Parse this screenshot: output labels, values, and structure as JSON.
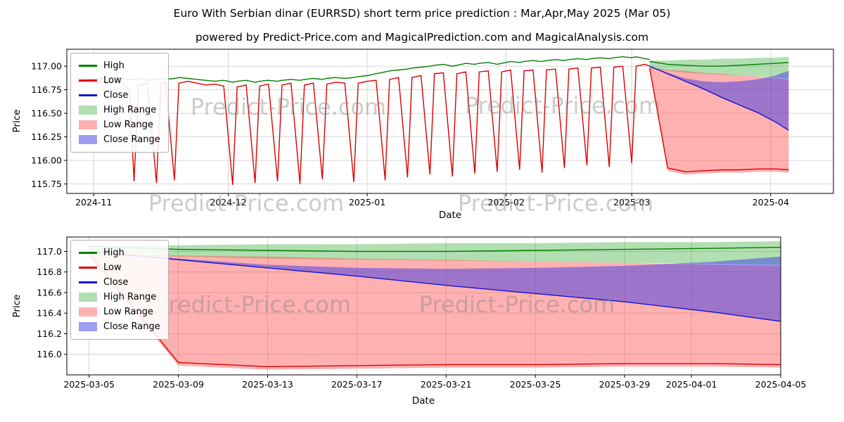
{
  "figure": {
    "title": "Euro With Serbian dinar (EURRSD) short term price prediction : Mar,Apr,May 2025 (Mar 05)",
    "subtitle": "powered by Predict-Price.com and MagicalPrediction.com and MagicalAnalysis.com",
    "watermark": "Predict-Price.com"
  },
  "colors": {
    "high_line": "#008000",
    "low_line": "#dd0000",
    "close_line": "#1414cc",
    "high_range": "rgba(0,150,0,0.30)",
    "low_range": "rgba(255,70,70,0.42)",
    "close_range": "rgba(60,60,230,0.50)",
    "grid": "#cccccc",
    "axis": "#000000",
    "watermark": "rgba(128,128,128,0.40)"
  },
  "legend": {
    "items": [
      {
        "label": "High",
        "swatch": "line",
        "color_key": "high_line"
      },
      {
        "label": "Low",
        "swatch": "line",
        "color_key": "low_line"
      },
      {
        "label": "Close",
        "swatch": "line",
        "color_key": "close_line"
      },
      {
        "label": "High Range",
        "swatch": "patch",
        "color_key": "high_range"
      },
      {
        "label": "Low Range",
        "swatch": "patch",
        "color_key": "low_range"
      },
      {
        "label": "Close Range",
        "swatch": "patch",
        "color_key": "close_range"
      }
    ]
  },
  "chart_data": [
    {
      "type": "line",
      "name": "history-with-forecast",
      "title": "",
      "xlabel": "Date",
      "ylabel": "Price",
      "xlim": [
        "2024-10-26",
        "2025-04-15"
      ],
      "ylim": [
        115.65,
        117.18
      ],
      "x_ticks": [
        {
          "date": "2024-11-01",
          "label": "2024-11"
        },
        {
          "date": "2024-12-01",
          "label": "2024-12"
        },
        {
          "date": "2025-01-01",
          "label": "2025-01"
        },
        {
          "date": "2025-02-01",
          "label": "2025-02"
        },
        {
          "date": "2025-03-01",
          "label": "2025-03"
        },
        {
          "date": "2025-04-01",
          "label": "2025-04"
        }
      ],
      "y_ticks": [
        {
          "value": 115.75,
          "label": "115.75"
        },
        {
          "value": 116.0,
          "label": "116.00"
        },
        {
          "value": 116.25,
          "label": "116.25"
        },
        {
          "value": 116.5,
          "label": "116.50"
        },
        {
          "value": 116.75,
          "label": "116.75"
        },
        {
          "value": 117.0,
          "label": "117.00"
        }
      ],
      "series": {
        "historical": {
          "base_date": "2024-10-28",
          "day_offsets": [
            0,
            2,
            4,
            6,
            8,
            10,
            12,
            13,
            14,
            16,
            18,
            19,
            20,
            22,
            23,
            25,
            27,
            29,
            31,
            33,
            35,
            36,
            38,
            40,
            41,
            43,
            45,
            46,
            48,
            50,
            51,
            53,
            55,
            56,
            58,
            60,
            62,
            63,
            65,
            67,
            69,
            70,
            72,
            74,
            75,
            77,
            79,
            80,
            82,
            84,
            85,
            87,
            89,
            90,
            92,
            94,
            95,
            97,
            99,
            100,
            102,
            104,
            105,
            107,
            109,
            110,
            112,
            114,
            115,
            117,
            119,
            120,
            122,
            124,
            125,
            127,
            128
          ],
          "high": [
            116.87,
            116.88,
            116.86,
            116.87,
            116.88,
            116.87,
            116.86,
            116.86,
            116.87,
            116.85,
            116.86,
            116.87,
            116.86,
            116.87,
            116.88,
            116.87,
            116.86,
            116.85,
            116.84,
            116.85,
            116.83,
            116.84,
            116.85,
            116.83,
            116.84,
            116.85,
            116.84,
            116.85,
            116.86,
            116.85,
            116.86,
            116.87,
            116.86,
            116.87,
            116.88,
            116.87,
            116.88,
            116.89,
            116.9,
            116.92,
            116.94,
            116.95,
            116.96,
            116.97,
            116.98,
            116.99,
            117.0,
            117.01,
            117.02,
            117.0,
            117.01,
            117.03,
            117.02,
            117.03,
            117.04,
            117.02,
            117.03,
            117.05,
            117.04,
            117.05,
            117.06,
            117.05,
            117.06,
            117.07,
            117.06,
            117.07,
            117.08,
            117.07,
            117.08,
            117.09,
            117.08,
            117.09,
            117.1,
            117.09,
            117.1,
            117.08,
            117.07
          ],
          "low": [
            116.83,
            116.84,
            116.82,
            116.83,
            116.84,
            116.83,
            116.75,
            115.78,
            116.8,
            116.82,
            115.76,
            116.81,
            116.83,
            115.79,
            116.82,
            116.84,
            116.82,
            116.8,
            116.81,
            116.79,
            115.74,
            116.78,
            116.8,
            115.76,
            116.79,
            116.81,
            115.78,
            116.8,
            116.82,
            115.75,
            116.8,
            116.82,
            115.8,
            116.81,
            116.83,
            116.82,
            115.77,
            116.82,
            116.84,
            116.85,
            115.79,
            116.86,
            116.88,
            115.82,
            116.88,
            116.9,
            115.85,
            116.92,
            116.93,
            115.83,
            116.92,
            116.94,
            115.86,
            116.94,
            116.95,
            115.88,
            116.94,
            116.96,
            115.9,
            116.95,
            116.96,
            115.87,
            116.96,
            116.97,
            115.92,
            116.97,
            116.98,
            115.95,
            116.98,
            116.99,
            115.93,
            116.99,
            117.0,
            115.97,
            117.0,
            117.02,
            117.0
          ]
        },
        "prediction": {
          "base_date": "2025-03-05",
          "day_offsets": [
            0,
            4,
            8,
            12,
            16,
            20,
            24,
            28,
            31
          ],
          "high": [
            117.05,
            117.02,
            117.01,
            117.0,
            117.0,
            117.01,
            117.02,
            117.03,
            117.04
          ],
          "low": [
            116.98,
            115.92,
            115.88,
            115.89,
            115.9,
            115.9,
            115.91,
            115.91,
            115.9
          ],
          "close": [
            117.0,
            116.92,
            116.84,
            116.76,
            116.67,
            116.59,
            116.51,
            116.41,
            116.32
          ],
          "high_range": {
            "upper": [
              117.06,
              117.06,
              117.07,
              117.07,
              117.08,
              117.08,
              117.09,
              117.09,
              117.1
            ],
            "lower": [
              116.97,
              116.95,
              116.93,
              116.92,
              116.91,
              116.9,
              116.89,
              116.88,
              116.87
            ]
          },
          "low_range": {
            "upper": [
              116.99,
              116.96,
              116.95,
              116.93,
              116.92,
              116.9,
              116.89,
              116.87,
              116.86
            ],
            "lower": [
              116.95,
              115.89,
              115.85,
              115.86,
              115.87,
              115.87,
              115.88,
              115.88,
              115.87
            ]
          },
          "close_range": {
            "upper": [
              117.0,
              116.93,
              116.87,
              116.84,
              116.83,
              116.84,
              116.86,
              116.9,
              116.95
            ],
            "lower": [
              117.0,
              116.92,
              116.84,
              116.76,
              116.67,
              116.59,
              116.51,
              116.41,
              116.32
            ]
          }
        }
      }
    },
    {
      "type": "line",
      "name": "forecast-detail",
      "title": "",
      "xlabel": "Date",
      "ylabel": "Price",
      "xlim": [
        "2025-03-04",
        "2025-04-05"
      ],
      "ylim": [
        115.8,
        117.14
      ],
      "x_ticks": [
        {
          "date": "2025-03-05",
          "label": "2025-03-05"
        },
        {
          "date": "2025-03-09",
          "label": "2025-03-09"
        },
        {
          "date": "2025-03-13",
          "label": "2025-03-13"
        },
        {
          "date": "2025-03-17",
          "label": "2025-03-17"
        },
        {
          "date": "2025-03-21",
          "label": "2025-03-21"
        },
        {
          "date": "2025-03-25",
          "label": "2025-03-25"
        },
        {
          "date": "2025-03-29",
          "label": "2025-03-29"
        },
        {
          "date": "2025-04-01",
          "label": "2025-04-01"
        },
        {
          "date": "2025-04-05",
          "label": "2025-04-05"
        }
      ],
      "y_ticks": [
        {
          "value": 116.0,
          "label": "116.0"
        },
        {
          "value": 116.2,
          "label": "116.2"
        },
        {
          "value": 116.4,
          "label": "116.4"
        },
        {
          "value": 116.6,
          "label": "116.6"
        },
        {
          "value": 116.8,
          "label": "116.8"
        },
        {
          "value": 117.0,
          "label": "117.0"
        }
      ],
      "series": {
        "prediction": {
          "base_date": "2025-03-05",
          "day_offsets": [
            0,
            4,
            8,
            12,
            16,
            20,
            24,
            28,
            31
          ],
          "high": [
            117.05,
            117.02,
            117.01,
            117.0,
            117.0,
            117.01,
            117.02,
            117.03,
            117.04
          ],
          "low": [
            116.98,
            115.92,
            115.88,
            115.89,
            115.9,
            115.9,
            115.91,
            115.91,
            115.9
          ],
          "close": [
            117.0,
            116.92,
            116.84,
            116.76,
            116.67,
            116.59,
            116.51,
            116.41,
            116.32
          ],
          "high_range": {
            "upper": [
              117.06,
              117.06,
              117.07,
              117.07,
              117.08,
              117.08,
              117.09,
              117.09,
              117.1
            ],
            "lower": [
              116.97,
              116.95,
              116.93,
              116.92,
              116.91,
              116.9,
              116.89,
              116.88,
              116.87
            ]
          },
          "low_range": {
            "upper": [
              116.99,
              116.96,
              116.95,
              116.93,
              116.92,
              116.9,
              116.89,
              116.87,
              116.86
            ],
            "lower": [
              116.95,
              115.89,
              115.85,
              115.86,
              115.87,
              115.87,
              115.88,
              115.88,
              115.87
            ]
          },
          "close_range": {
            "upper": [
              117.0,
              116.93,
              116.87,
              116.84,
              116.83,
              116.84,
              116.86,
              116.9,
              116.95
            ],
            "lower": [
              117.0,
              116.92,
              116.84,
              116.76,
              116.67,
              116.59,
              116.51,
              116.41,
              116.32
            ]
          }
        }
      }
    }
  ]
}
